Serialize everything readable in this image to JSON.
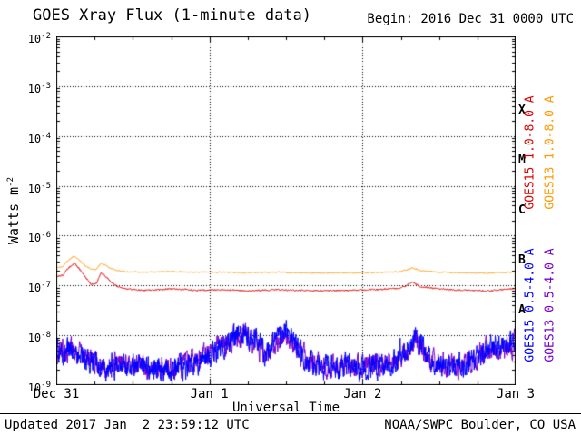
{
  "header": {
    "title": "GOES Xray Flux (1-minute data)",
    "begin_label": "Begin: 2016 Dec 31 0000 UTC"
  },
  "axes": {
    "ylabel_base": "Watts m",
    "ylabel_exponent": "-2",
    "xlabel": "Universal Time",
    "y_tick_exponents": [
      -2,
      -3,
      -4,
      -5,
      -6,
      -7,
      -8,
      -9
    ],
    "x_tick_labels": [
      "Dec 31",
      "Jan 1",
      "Jan 2",
      "Jan 3"
    ],
    "flare_classes": [
      {
        "letter": "X",
        "log_center": -3.5
      },
      {
        "letter": "M",
        "log_center": -4.5
      },
      {
        "letter": "C",
        "log_center": -5.5
      },
      {
        "letter": "B",
        "log_center": -6.5
      },
      {
        "letter": "A",
        "log_center": -7.5
      }
    ]
  },
  "legend": {
    "labels": [
      {
        "text": "GOES15 1.0-8.0 A",
        "color": "#dd0000"
      },
      {
        "text": "GOES13 1.0-8.0 A",
        "color": "#ff9900"
      },
      {
        "text": "GOES15 0.5-4.0 A",
        "color": "#0000ff"
      },
      {
        "text": "GOES13 0.5-4.0 A",
        "color": "#7700cc"
      }
    ]
  },
  "footer": {
    "updated": "Updated 2017 Jan  2 23:59:12 UTC",
    "source": "NOAA/SWPC Boulder, CO USA"
  },
  "chart_data": {
    "type": "line",
    "title": "GOES Xray Flux (1-minute data)",
    "xlabel": "Universal Time",
    "ylabel": "Watts m^-2",
    "x_range_hours": [
      0,
      72
    ],
    "x_tick_hours": [
      0,
      24,
      48,
      72
    ],
    "x_tick_labels": [
      "Dec 31",
      "Jan 1",
      "Jan 2",
      "Jan 3"
    ],
    "day_boundaries_hours": [
      24,
      48
    ],
    "y_log10_range": [
      -9,
      -2
    ],
    "y_scale": "log",
    "grid": "dotted horizontal lines at each decade, dotted vertical lines at day boundaries",
    "flare_class_bands": {
      "A": "1e-8 to 1e-7",
      "B": "1e-7 to 1e-6",
      "C": "1e-6 to 1e-5",
      "M": "1e-5 to 1e-4",
      "X": "1e-4 to 1e-3"
    },
    "series": [
      {
        "name": "GOES13 0.5-4.0 A",
        "color": "#7700cc",
        "noise_log10": 0.38,
        "keypoints": [
          [
            0,
            4.5e-09
          ],
          [
            2,
            5e-09
          ],
          [
            4,
            4e-09
          ],
          [
            6,
            3e-09
          ],
          [
            8,
            2.5e-09
          ],
          [
            10,
            2.6e-09
          ],
          [
            12,
            2.8e-09
          ],
          [
            14,
            2.4e-09
          ],
          [
            16,
            2.2e-09
          ],
          [
            18,
            2.2e-09
          ],
          [
            20,
            2.4e-09
          ],
          [
            22,
            3e-09
          ],
          [
            24,
            4e-09
          ],
          [
            26,
            6e-09
          ],
          [
            28,
            9e-09
          ],
          [
            29.5,
            1.1e-08
          ],
          [
            31,
            7e-09
          ],
          [
            33,
            4e-09
          ],
          [
            34.5,
            8e-09
          ],
          [
            36,
            1e-08
          ],
          [
            37.5,
            6e-09
          ],
          [
            39,
            3.5e-09
          ],
          [
            41,
            2.6e-09
          ],
          [
            43,
            2.4e-09
          ],
          [
            45,
            2.6e-09
          ],
          [
            47,
            2.4e-09
          ],
          [
            49,
            2.5e-09
          ],
          [
            51,
            2.6e-09
          ],
          [
            53,
            3e-09
          ],
          [
            55,
            6e-09
          ],
          [
            56.2,
            8.5e-09
          ],
          [
            57.5,
            5e-09
          ],
          [
            59,
            3e-09
          ],
          [
            61,
            2.6e-09
          ],
          [
            63,
            2.4e-09
          ],
          [
            65,
            3e-09
          ],
          [
            67,
            4.5e-09
          ],
          [
            68.5,
            5.5e-09
          ],
          [
            70,
            4.5e-09
          ],
          [
            71,
            5.5e-09
          ],
          [
            72,
            7e-09
          ]
        ]
      },
      {
        "name": "GOES15 0.5-4.0 A",
        "color": "#0000ff",
        "noise_log10": 0.4,
        "keypoints": [
          [
            0,
            4e-09
          ],
          [
            2,
            4.5e-09
          ],
          [
            4,
            3.5e-09
          ],
          [
            6,
            2.8e-09
          ],
          [
            8,
            2.3e-09
          ],
          [
            10,
            2.4e-09
          ],
          [
            12,
            2.6e-09
          ],
          [
            14,
            2.2e-09
          ],
          [
            16,
            2e-09
          ],
          [
            18,
            2e-09
          ],
          [
            20,
            2.2e-09
          ],
          [
            22,
            2.8e-09
          ],
          [
            24,
            3.8e-09
          ],
          [
            26,
            6e-09
          ],
          [
            28,
            1e-08
          ],
          [
            29.5,
            1.3e-08
          ],
          [
            31,
            8e-09
          ],
          [
            33,
            4e-09
          ],
          [
            34.5,
            9e-09
          ],
          [
            36,
            1.2e-08
          ],
          [
            37.5,
            7e-09
          ],
          [
            39,
            3.5e-09
          ],
          [
            41,
            2.5e-09
          ],
          [
            43,
            2.2e-09
          ],
          [
            45,
            2.5e-09
          ],
          [
            47,
            2.3e-09
          ],
          [
            49,
            2.4e-09
          ],
          [
            51,
            2.5e-09
          ],
          [
            53,
            3e-09
          ],
          [
            55,
            6.5e-09
          ],
          [
            56.2,
            9.5e-09
          ],
          [
            57.5,
            5e-09
          ],
          [
            59,
            3e-09
          ],
          [
            61,
            2.5e-09
          ],
          [
            63,
            2.3e-09
          ],
          [
            65,
            3e-09
          ],
          [
            67,
            5e-09
          ],
          [
            68.5,
            6e-09
          ],
          [
            70,
            5e-09
          ],
          [
            71,
            6e-09
          ],
          [
            72,
            8e-09
          ]
        ]
      },
      {
        "name": "GOES15 1.0-8.0 A",
        "color": "#dd0000",
        "noise_log10": 0.025,
        "keypoints": [
          [
            0,
            1.5e-07
          ],
          [
            1,
            1.6e-07
          ],
          [
            2,
            2.3e-07
          ],
          [
            2.8,
            2.8e-07
          ],
          [
            3.5,
            2.3e-07
          ],
          [
            4.5,
            1.5e-07
          ],
          [
            5.5,
            1.05e-07
          ],
          [
            6.3,
            1.1e-07
          ],
          [
            7,
            1.8e-07
          ],
          [
            7.6,
            1.6e-07
          ],
          [
            8.5,
            1.2e-07
          ],
          [
            9.5,
            9.5e-08
          ],
          [
            11,
            8.5e-08
          ],
          [
            14,
            8e-08
          ],
          [
            18,
            8.5e-08
          ],
          [
            22,
            8e-08
          ],
          [
            26,
            8.2e-08
          ],
          [
            30,
            7.8e-08
          ],
          [
            34,
            8.2e-08
          ],
          [
            38,
            8e-08
          ],
          [
            42,
            7.8e-08
          ],
          [
            46,
            8e-08
          ],
          [
            50,
            8.2e-08
          ],
          [
            54,
            8.8e-08
          ],
          [
            55.8,
            1.15e-07
          ],
          [
            57,
            9.5e-08
          ],
          [
            60,
            8.5e-08
          ],
          [
            64,
            8e-08
          ],
          [
            68,
            7.8e-08
          ],
          [
            72,
            8.8e-08
          ]
        ]
      },
      {
        "name": "GOES13 1.0-8.0 A",
        "color": "#ff9900",
        "noise_log10": 0.018,
        "keypoints": [
          [
            0,
            2.2e-07
          ],
          [
            1,
            2.4e-07
          ],
          [
            2,
            3.3e-07
          ],
          [
            2.8,
            3.9e-07
          ],
          [
            3.5,
            3.3e-07
          ],
          [
            4.5,
            2.5e-07
          ],
          [
            5.5,
            2.1e-07
          ],
          [
            6.3,
            2.15e-07
          ],
          [
            7,
            2.8e-07
          ],
          [
            7.6,
            2.6e-07
          ],
          [
            8.5,
            2.2e-07
          ],
          [
            9.5,
            2e-07
          ],
          [
            11,
            1.9e-07
          ],
          [
            14,
            1.85e-07
          ],
          [
            18,
            1.9e-07
          ],
          [
            22,
            1.85e-07
          ],
          [
            26,
            1.85e-07
          ],
          [
            30,
            1.8e-07
          ],
          [
            34,
            1.85e-07
          ],
          [
            38,
            1.8e-07
          ],
          [
            42,
            1.78e-07
          ],
          [
            46,
            1.8e-07
          ],
          [
            50,
            1.82e-07
          ],
          [
            54,
            1.9e-07
          ],
          [
            55.8,
            2.25e-07
          ],
          [
            57,
            2e-07
          ],
          [
            60,
            1.85e-07
          ],
          [
            64,
            1.8e-07
          ],
          [
            68,
            1.78e-07
          ],
          [
            72,
            1.85e-07
          ]
        ]
      }
    ]
  }
}
